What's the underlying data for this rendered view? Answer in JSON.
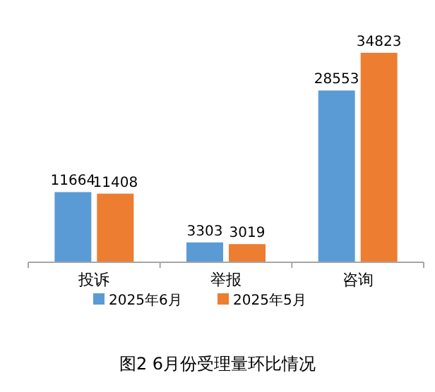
{
  "chart_data": {
    "type": "bar",
    "title": "图2  6月份受理量环比情况",
    "categories": [
      "投诉",
      "举报",
      "咨询"
    ],
    "series": [
      {
        "name": "2025年6月",
        "color": "#5b9bd5",
        "values": [
          11664,
          3303,
          28553
        ]
      },
      {
        "name": "2025年5月",
        "color": "#ed7d31",
        "values": [
          11408,
          3019,
          34823
        ]
      }
    ],
    "data_labels": true,
    "legend": "bottom"
  }
}
